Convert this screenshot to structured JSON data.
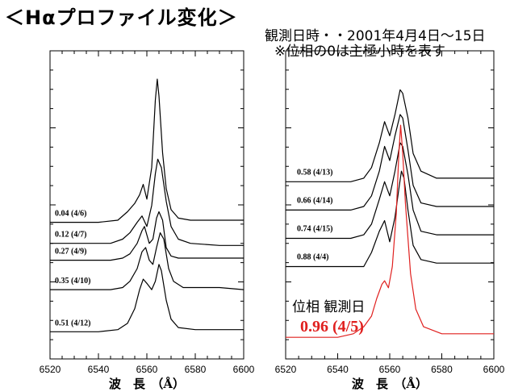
{
  "header": {
    "title": "＜Hαプロファイル変化＞",
    "observation": "観測日時・・2001年4月4日〜15日",
    "note": "※位相の0は主極小時を表す"
  },
  "chart_data": [
    {
      "type": "line",
      "xlabel": "波　長　（Å）",
      "xlim": [
        6520,
        6600
      ],
      "xticks": [
        "6520",
        "6540",
        "6560",
        "6580",
        "6600"
      ],
      "series": [
        {
          "name": "0.04 (4/6)",
          "color": "#000000",
          "points": [
            [
              6520,
              0.32
            ],
            [
              6540,
              0.32
            ],
            [
              6548,
              0.33
            ],
            [
              6552,
              0.37
            ],
            [
              6555,
              0.41
            ],
            [
              6557,
              0.45
            ],
            [
              6558.5,
              0.5
            ],
            [
              6560,
              0.43
            ],
            [
              6562,
              0.58
            ],
            [
              6563.5,
              0.9
            ],
            [
              6564.3,
              1.0
            ],
            [
              6565,
              0.92
            ],
            [
              6566.5,
              0.65
            ],
            [
              6568,
              0.48
            ],
            [
              6570,
              0.38
            ],
            [
              6573,
              0.34
            ],
            [
              6578,
              0.33
            ],
            [
              6590,
              0.33
            ],
            [
              6600,
              0.33
            ]
          ]
        },
        {
          "name": "0.12 (4/7)",
          "color": "#000000",
          "points": [
            [
              6520,
              0.22
            ],
            [
              6545,
              0.22
            ],
            [
              6550,
              0.24
            ],
            [
              6553,
              0.27
            ],
            [
              6556,
              0.32
            ],
            [
              6558,
              0.35
            ],
            [
              6560,
              0.3
            ],
            [
              6562,
              0.4
            ],
            [
              6563.5,
              0.55
            ],
            [
              6564.5,
              0.62
            ],
            [
              6566,
              0.58
            ],
            [
              6568,
              0.42
            ],
            [
              6570,
              0.3
            ],
            [
              6573,
              0.24
            ],
            [
              6578,
              0.22
            ],
            [
              6590,
              0.21
            ],
            [
              6600,
              0.21
            ]
          ]
        },
        {
          "name": "0.27 (4/9)",
          "color": "#000000",
          "points": [
            [
              6520,
              0.14
            ],
            [
              6545,
              0.14
            ],
            [
              6550,
              0.15
            ],
            [
              6553,
              0.17
            ],
            [
              6556,
              0.22
            ],
            [
              6558,
              0.28
            ],
            [
              6559,
              0.3
            ],
            [
              6561,
              0.22
            ],
            [
              6562.5,
              0.24
            ],
            [
              6564,
              0.34
            ],
            [
              6565,
              0.37
            ],
            [
              6566.5,
              0.33
            ],
            [
              6568,
              0.2
            ],
            [
              6570,
              0.16
            ],
            [
              6573,
              0.15
            ],
            [
              6590,
              0.15
            ],
            [
              6600,
              0.15
            ]
          ]
        },
        {
          "name": "0.35 (4/10)",
          "color": "#000000",
          "points": [
            [
              6520,
              0.0
            ],
            [
              6545,
              0.0
            ],
            [
              6550,
              0.01
            ],
            [
              6553,
              0.04
            ],
            [
              6556,
              0.1
            ],
            [
              6558,
              0.18
            ],
            [
              6559.5,
              0.2
            ],
            [
              6561,
              0.14
            ],
            [
              6562.5,
              0.12
            ],
            [
              6564,
              0.2
            ],
            [
              6565.5,
              0.27
            ],
            [
              6567,
              0.24
            ],
            [
              6569,
              0.1
            ],
            [
              6571,
              0.04
            ],
            [
              6575,
              0.01
            ],
            [
              6590,
              0.01
            ],
            [
              6600,
              0.0
            ]
          ]
        },
        {
          "name": "0.51 (4/12)",
          "color": "#000000",
          "points": [
            [
              6520,
              -0.2
            ],
            [
              6540,
              -0.2
            ],
            [
              6548,
              -0.19
            ],
            [
              6552,
              -0.16
            ],
            [
              6555,
              -0.09
            ],
            [
              6557,
              0.0
            ],
            [
              6558.5,
              0.05
            ],
            [
              6560,
              0.03
            ],
            [
              6562,
              0.0
            ],
            [
              6563.5,
              0.04
            ],
            [
              6565,
              0.12
            ],
            [
              6566,
              0.09
            ],
            [
              6568,
              -0.05
            ],
            [
              6570,
              -0.14
            ],
            [
              6573,
              -0.18
            ],
            [
              6580,
              -0.19
            ],
            [
              6600,
              -0.19
            ]
          ]
        }
      ]
    },
    {
      "type": "line",
      "xlabel": "波　長　（Å）",
      "xlim": [
        6520,
        6600
      ],
      "xticks": [
        "6520",
        "6540",
        "6560",
        "6580",
        "6600"
      ],
      "legend_title": "位相 観測日",
      "legend_value": "0.96 (4/5)",
      "series": [
        {
          "name": "0.58 (4/13)",
          "color": "#000000",
          "points": [
            [
              6520,
              0.44
            ],
            [
              6545,
              0.44
            ],
            [
              6550,
              0.45
            ],
            [
              6553,
              0.48
            ],
            [
              6556,
              0.55
            ],
            [
              6558,
              0.61
            ],
            [
              6560,
              0.57
            ],
            [
              6562,
              0.63
            ],
            [
              6564,
              0.7
            ],
            [
              6565,
              0.69
            ],
            [
              6567,
              0.62
            ],
            [
              6569,
              0.52
            ],
            [
              6572,
              0.47
            ],
            [
              6578,
              0.45
            ],
            [
              6600,
              0.45
            ]
          ]
        },
        {
          "name": "0.66 (4/14)",
          "color": "#000000",
          "points": [
            [
              6520,
              0.36
            ],
            [
              6545,
              0.36
            ],
            [
              6550,
              0.37
            ],
            [
              6553,
              0.4
            ],
            [
              6556,
              0.47
            ],
            [
              6558,
              0.54
            ],
            [
              6560,
              0.5
            ],
            [
              6562,
              0.57
            ],
            [
              6564,
              0.63
            ],
            [
              6565,
              0.62
            ],
            [
              6567,
              0.53
            ],
            [
              6569,
              0.43
            ],
            [
              6572,
              0.38
            ],
            [
              6578,
              0.37
            ],
            [
              6600,
              0.37
            ]
          ]
        },
        {
          "name": "0.74 (4/15)",
          "color": "#000000",
          "points": [
            [
              6520,
              0.28
            ],
            [
              6545,
              0.28
            ],
            [
              6550,
              0.29
            ],
            [
              6553,
              0.32
            ],
            [
              6556,
              0.39
            ],
            [
              6558,
              0.44
            ],
            [
              6560,
              0.4
            ],
            [
              6562,
              0.47
            ],
            [
              6564,
              0.55
            ],
            [
              6565,
              0.54
            ],
            [
              6567,
              0.46
            ],
            [
              6569,
              0.36
            ],
            [
              6572,
              0.3
            ],
            [
              6578,
              0.29
            ],
            [
              6600,
              0.29
            ]
          ]
        },
        {
          "name": "0.88 (4/4)",
          "color": "#000000",
          "points": [
            [
              6520,
              0.2
            ],
            [
              6545,
              0.2
            ],
            [
              6550,
              0.2
            ],
            [
              6553,
              0.24
            ],
            [
              6556,
              0.3
            ],
            [
              6558,
              0.33
            ],
            [
              6560,
              0.27
            ],
            [
              6562,
              0.34
            ],
            [
              6563.5,
              0.42
            ],
            [
              6564.5,
              0.47
            ],
            [
              6565.5,
              0.45
            ],
            [
              6567,
              0.36
            ],
            [
              6569,
              0.26
            ],
            [
              6572,
              0.22
            ],
            [
              6578,
              0.21
            ],
            [
              6600,
              0.21
            ]
          ]
        },
        {
          "name": "0.96 (4/5)",
          "color": "#e0201f",
          "points": [
            [
              6520,
              0.0
            ],
            [
              6540,
              0.0
            ],
            [
              6546,
              0.01
            ],
            [
              6550,
              0.03
            ],
            [
              6553,
              0.06
            ],
            [
              6555,
              0.11
            ],
            [
              6557,
              0.15
            ],
            [
              6558,
              0.16
            ],
            [
              6559.5,
              0.14
            ],
            [
              6561,
              0.2
            ],
            [
              6562.5,
              0.35
            ],
            [
              6563.5,
              0.52
            ],
            [
              6564.2,
              0.6
            ],
            [
              6565,
              0.52
            ],
            [
              6566,
              0.38
            ],
            [
              6568,
              0.18
            ],
            [
              6570,
              0.08
            ],
            [
              6573,
              0.03
            ],
            [
              6580,
              0.01
            ],
            [
              6600,
              0.01
            ]
          ]
        }
      ]
    }
  ]
}
